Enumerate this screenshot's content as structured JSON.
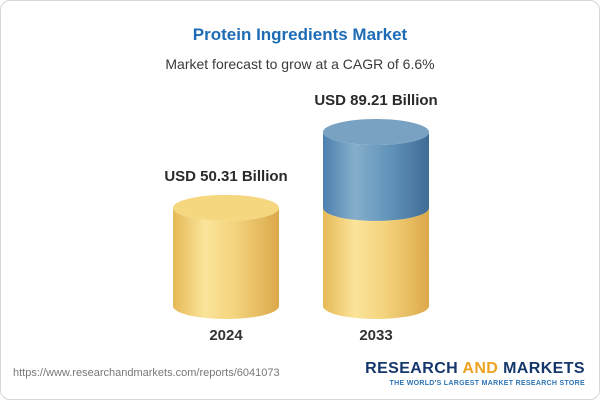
{
  "header": {
    "title": "Protein Ingredients Market",
    "subtitle": "Market forecast to grow at a CAGR of 6.6%"
  },
  "chart_data": {
    "type": "bar",
    "subtype": "cylinder-3d",
    "title": "Protein Ingredients Market",
    "subtitle": "Market forecast to grow at a CAGR of 6.6%",
    "cagr": "6.6%",
    "categories": [
      "2024",
      "2033"
    ],
    "values": [
      50.31,
      89.21
    ],
    "value_labels": [
      "USD 50.31 Billion",
      "USD 89.21 Billion"
    ],
    "unit": "USD Billion",
    "series_note": "2033 cylinder is stacked: yellow base equals the 2024 value, blue top segment is the forecast growth to 89.21",
    "colors": {
      "base_segment": "#F0CA6A",
      "growth_segment": "#5C8CB8",
      "title_blue": "#1E6CB5"
    },
    "xlabel": "",
    "ylabel": "",
    "grid": false,
    "legend": false
  },
  "footer": {
    "url": "https://www.researchandmarkets.com/reports/6041073",
    "logo": {
      "words": [
        "RESEARCH ",
        "AND",
        " MARKETS"
      ],
      "tagline": "THE WORLD'S LARGEST MARKET RESEARCH STORE"
    }
  }
}
